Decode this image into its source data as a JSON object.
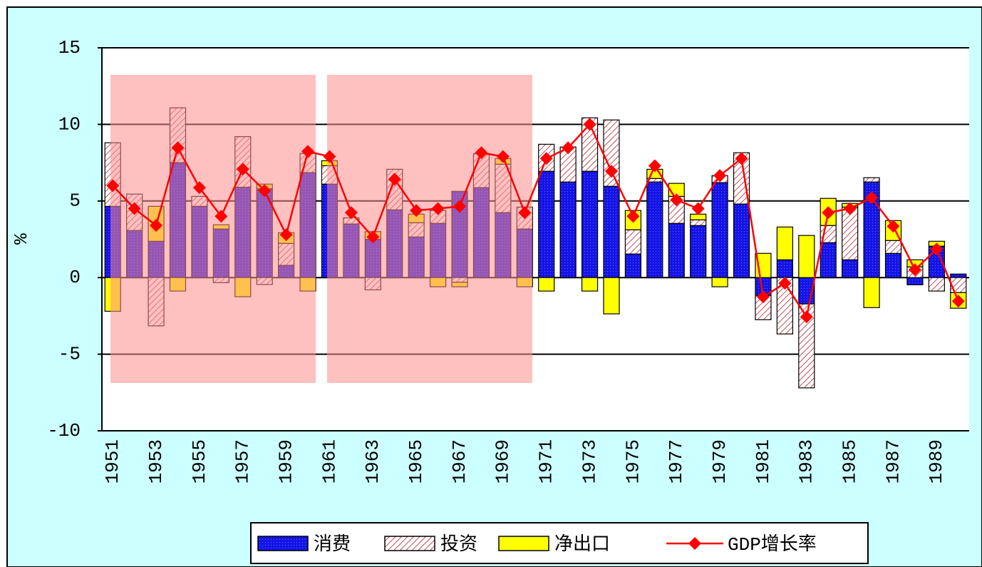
{
  "chart_data": {
    "type": "bar",
    "y_label": "%",
    "categories": [
      "1951",
      null,
      "1953",
      null,
      "1955",
      null,
      "1957",
      null,
      "1959",
      null,
      "1961",
      null,
      "1963",
      null,
      "1965",
      null,
      "1967",
      null,
      "1969",
      null,
      "1971",
      null,
      "1973",
      null,
      "1975",
      null,
      "1977",
      null,
      "1979",
      null,
      "1981",
      null,
      "1983",
      null,
      "1985",
      null,
      "1987",
      null,
      "1989",
      null
    ],
    "series": [
      {
        "name": "消费",
        "type": "bar",
        "color": "#1414e6",
        "values": [
          4.65,
          3.07,
          2.37,
          7.5,
          4.65,
          3.17,
          5.9,
          5.8,
          0.8,
          6.85,
          6.1,
          3.5,
          2.5,
          4.42,
          2.65,
          3.54,
          5.63,
          5.87,
          4.24,
          3.17,
          6.94,
          6.24,
          6.94,
          5.96,
          1.54,
          6.24,
          3.54,
          3.4,
          6.2,
          4.8,
          -1.16,
          1.16,
          -1.72,
          2.28,
          1.16,
          6.24,
          1.58,
          -0.47,
          2.05,
          0.23
        ]
      },
      {
        "name": "投资",
        "type": "bar",
        "color": "#f0b8c0",
        "values": [
          4.15,
          2.38,
          -3.15,
          3.58,
          0.65,
          -0.33,
          3.3,
          -0.45,
          1.43,
          1.25,
          1.2,
          0.4,
          -0.8,
          2.65,
          0.93,
          0.84,
          -0.3,
          2.23,
          3.16,
          1.43,
          1.76,
          2.28,
          3.49,
          4.33,
          1.58,
          0.23,
          1.76,
          0.37,
          0.46,
          3.35,
          -1.59,
          -3.68,
          -5.48,
          1.12,
          3.44,
          0.28,
          0.84,
          0.7,
          -0.88,
          -0.98
        ]
      },
      {
        "name": "净出口",
        "type": "bar",
        "color": "#ffff00",
        "values": [
          -2.2,
          0,
          2.28,
          -0.88,
          0,
          0.28,
          -1.25,
          0.3,
          0.7,
          -0.88,
          0.33,
          0,
          0.5,
          0,
          0.56,
          -0.6,
          -0.3,
          0,
          0.37,
          -0.6,
          -0.88,
          0,
          -0.88,
          -2.37,
          1.26,
          0.6,
          0.85,
          0.37,
          -0.6,
          0,
          1.58,
          2.14,
          2.75,
          1.77,
          0.24,
          -1.96,
          1.3,
          0.46,
          0.32,
          -1.02
        ]
      },
      {
        "name": "GDP增长率",
        "type": "line",
        "color": "#ff0000",
        "values": [
          6.0,
          4.5,
          3.4,
          8.47,
          5.87,
          4.0,
          7.08,
          5.68,
          2.8,
          8.24,
          7.9,
          4.24,
          2.65,
          6.42,
          4.38,
          4.5,
          4.65,
          8.15,
          7.9,
          4.24,
          7.77,
          8.47,
          10.0,
          6.94,
          4.0,
          7.3,
          5.07,
          4.5,
          6.66,
          7.77,
          -1.26,
          -0.37,
          -2.56,
          4.24,
          4.5,
          5.21,
          3.35,
          0.51,
          1.86,
          -1.54
        ]
      }
    ],
    "ylim": [
      -10,
      15
    ],
    "yticks": [
      -10,
      -5,
      0,
      5,
      10,
      15
    ],
    "grid": true,
    "legend": "bottom"
  }
}
